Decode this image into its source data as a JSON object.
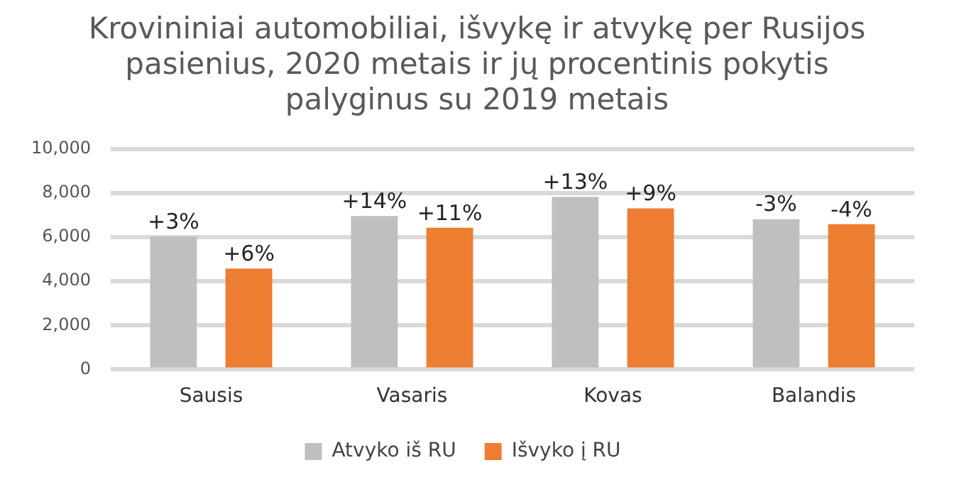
{
  "chart_data": {
    "type": "bar",
    "title": "Krovininiai automobiliai, išvykę ir atvykę per Rusijos pasienius, 2020 metais ir jų procentinis pokytis palyginus su 2019 metais",
    "categories": [
      "Sausis",
      "Vasaris",
      "Kovas",
      "Balandis"
    ],
    "series": [
      {
        "name": "Atvyko iš RU",
        "color": "#bfbfbf",
        "values": [
          6030,
          6960,
          7830,
          6820
        ]
      },
      {
        "name": "Išvyko į RU",
        "color": "#ed7d31",
        "values": [
          4580,
          6430,
          7310,
          6590
        ]
      }
    ],
    "annotations": [
      "+3%",
      "+14%",
      "+13%",
      "-3%",
      "+6%",
      "+11%",
      "+9%",
      "-4%"
    ],
    "ylim": [
      0,
      10000
    ],
    "yticks": [
      0,
      {
        "value": 2000,
        "label": "2,000"
      },
      {
        "value": 4000,
        "label": "4,000"
      },
      {
        "value": 6000,
        "label": "6,000"
      },
      {
        "value": 8000,
        "label": "8,000"
      },
      {
        "value": 10000,
        "label": "10,000"
      }
    ],
    "grid": "y",
    "legend": "bottom"
  }
}
